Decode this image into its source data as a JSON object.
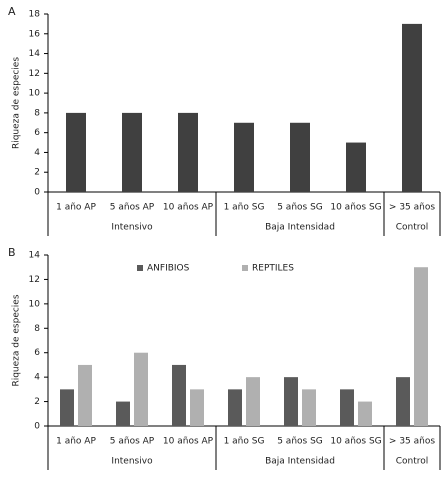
{
  "chart_data": [
    {
      "type": "bar",
      "panel_label": "A",
      "y_label": "Riqueza de especies",
      "category_groups": [
        {
          "name": "Intensivo",
          "categories": [
            "1 año AP",
            "5 años AP",
            "10 años AP"
          ]
        },
        {
          "name": "Baja Intensidad",
          "categories": [
            "1 año SG",
            "5 años SG",
            "10 años SG"
          ]
        },
        {
          "name": "Control",
          "categories": [
            "> 35 años"
          ]
        }
      ],
      "values": [
        8,
        8,
        8,
        7,
        7,
        5,
        17
      ],
      "color": "#404040",
      "ylim": [
        0,
        18
      ],
      "yticks": [
        0,
        2,
        4,
        6,
        8,
        10,
        12,
        14,
        16,
        18
      ]
    },
    {
      "type": "grouped_bar",
      "panel_label": "B",
      "y_label": "Riqueza de especies",
      "category_groups": [
        {
          "name": "Intensivo",
          "categories": [
            "1 año AP",
            "5 años AP",
            "10 años AP"
          ]
        },
        {
          "name": "Baja Intensidad",
          "categories": [
            "1 año SG",
            "5 años SG",
            "10 años SG"
          ]
        },
        {
          "name": "Control",
          "categories": [
            "> 35 años"
          ]
        }
      ],
      "series": [
        {
          "name": "ANFIBIOS",
          "color": "#5a5a5a",
          "values": [
            3,
            2,
            5,
            3,
            4,
            3,
            4
          ]
        },
        {
          "name": "REPTILES",
          "color": "#b0b0b0",
          "values": [
            5,
            6,
            3,
            4,
            3,
            2,
            13
          ]
        }
      ],
      "legend": "top",
      "ylim": [
        0,
        14
      ],
      "yticks": [
        0,
        2,
        4,
        6,
        8,
        10,
        12,
        14
      ]
    }
  ]
}
